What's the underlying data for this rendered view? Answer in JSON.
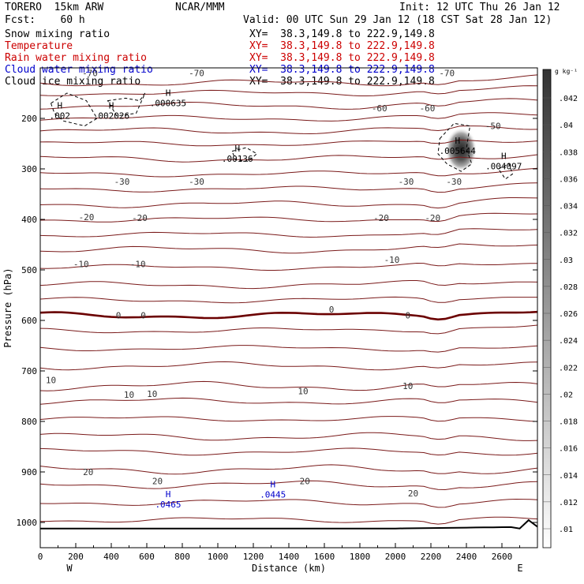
{
  "header": {
    "model": "TORERO  15km ARW",
    "org": "NCAR/MMM",
    "init": "Init: 12 UTC Thu 26 Jan 12",
    "fcst": "Fcst:    60 h",
    "valid": "Valid: 00 UTC Sun 29 Jan 12 (18 CST Sat 28 Jan 12)"
  },
  "fields": [
    {
      "name": "Snow mixing ratio",
      "xy": "XY=  38.3,149.8 to 222.9,149.8",
      "color": "#000000"
    },
    {
      "name": "Temperature",
      "xy": "XY=  38.3,149.8 to 222.9,149.8",
      "color": "#cc0000"
    },
    {
      "name": "Rain water mixing ratio",
      "xy": "XY=  38.3,149.8 to 222.9,149.8",
      "color": "#cc0000"
    },
    {
      "name": "Cloud water mixing ratio",
      "xy": "XY=  38.3,149.8 to 222.9,149.8",
      "color": "#0000cc"
    },
    {
      "name": "Cloud ice mixing ratio",
      "xy": "XY=  38.3,149.8 to 222.9,149.8",
      "color": "#000000"
    }
  ],
  "chart_data": {
    "type": "cross-section contour",
    "xlabel": "Distance (km)",
    "ylabel": "Pressure (hPa)",
    "x_ticks": [
      0,
      200,
      400,
      600,
      800,
      1000,
      1200,
      1400,
      1600,
      1800,
      2000,
      2200,
      2400,
      2600
    ],
    "y_ticks": [
      200,
      300,
      400,
      500,
      600,
      700,
      800,
      900,
      1000
    ],
    "xlim": [
      0,
      2800
    ],
    "ylim_hpa": [
      100,
      1050
    ],
    "x_left_label": "W",
    "x_right_label": "E",
    "colorbar": {
      "unit": "g kg⁻¹",
      "ticks": [
        ".042",
        ".04",
        ".038",
        ".036",
        ".034",
        ".032",
        ".03",
        ".028",
        ".026",
        ".024",
        ".022",
        ".02",
        ".018",
        ".016",
        ".014",
        ".012",
        ".01"
      ]
    },
    "temperature_labels": [
      {
        "text": "-70",
        "x": 280,
        "p": 110
      },
      {
        "text": "-70",
        "x": 880,
        "p": 110
      },
      {
        "text": "-70",
        "x": 2290,
        "p": 110
      },
      {
        "text": "-60",
        "x": 1910,
        "p": 180
      },
      {
        "text": "-60",
        "x": 2180,
        "p": 180
      },
      {
        "text": "-50",
        "x": 2550,
        "p": 215
      },
      {
        "text": "-30",
        "x": 460,
        "p": 325
      },
      {
        "text": "-30",
        "x": 880,
        "p": 325
      },
      {
        "text": "-30",
        "x": 2060,
        "p": 325
      },
      {
        "text": "-30",
        "x": 2330,
        "p": 325
      },
      {
        "text": "-20",
        "x": 260,
        "p": 395
      },
      {
        "text": "-20",
        "x": 560,
        "p": 397
      },
      {
        "text": "-20",
        "x": 1920,
        "p": 397
      },
      {
        "text": "-20",
        "x": 2210,
        "p": 397
      },
      {
        "text": "-10",
        "x": 230,
        "p": 488
      },
      {
        "text": "-10",
        "x": 550,
        "p": 488
      },
      {
        "text": "-10",
        "x": 1980,
        "p": 480
      },
      {
        "text": "0",
        "x": 440,
        "p": 590
      },
      {
        "text": "0",
        "x": 580,
        "p": 590
      },
      {
        "text": "0",
        "x": 1640,
        "p": 578
      },
      {
        "text": "0",
        "x": 2070,
        "p": 590
      },
      {
        "text": "10",
        "x": 60,
        "p": 718
      },
      {
        "text": "10",
        "x": 500,
        "p": 747
      },
      {
        "text": "10",
        "x": 630,
        "p": 745
      },
      {
        "text": "10",
        "x": 1480,
        "p": 740
      },
      {
        "text": "10",
        "x": 2070,
        "p": 730
      },
      {
        "text": "20",
        "x": 270,
        "p": 900
      },
      {
        "text": "20",
        "x": 660,
        "p": 918
      },
      {
        "text": "20",
        "x": 1490,
        "p": 918
      },
      {
        "text": "20",
        "x": 2100,
        "p": 942
      }
    ],
    "maxima": [
      {
        "label": "H",
        "value": ".002",
        "x": 110,
        "p": 185,
        "color": "#000000"
      },
      {
        "label": "H",
        "value": ".002026",
        "x": 400,
        "p": 185,
        "color": "#000000"
      },
      {
        "label": "H",
        "value": ".000635",
        "x": 720,
        "p": 160,
        "color": "#000000"
      },
      {
        "label": "H",
        "value": ".00136",
        "x": 1110,
        "p": 270,
        "color": "#000000"
      },
      {
        "label": "H",
        "value": ".005644",
        "x": 2350,
        "p": 255,
        "color": "#000000"
      },
      {
        "label": "H",
        "value": ".004097",
        "x": 2610,
        "p": 285,
        "color": "#000000"
      },
      {
        "label": "H",
        "value": ".0465",
        "x": 720,
        "p": 955,
        "color": "#0000cc"
      },
      {
        "label": "H",
        "value": ".0445",
        "x": 1310,
        "p": 935,
        "color": "#0000cc"
      }
    ],
    "legend_placement": "top-left header text",
    "grid": false
  }
}
